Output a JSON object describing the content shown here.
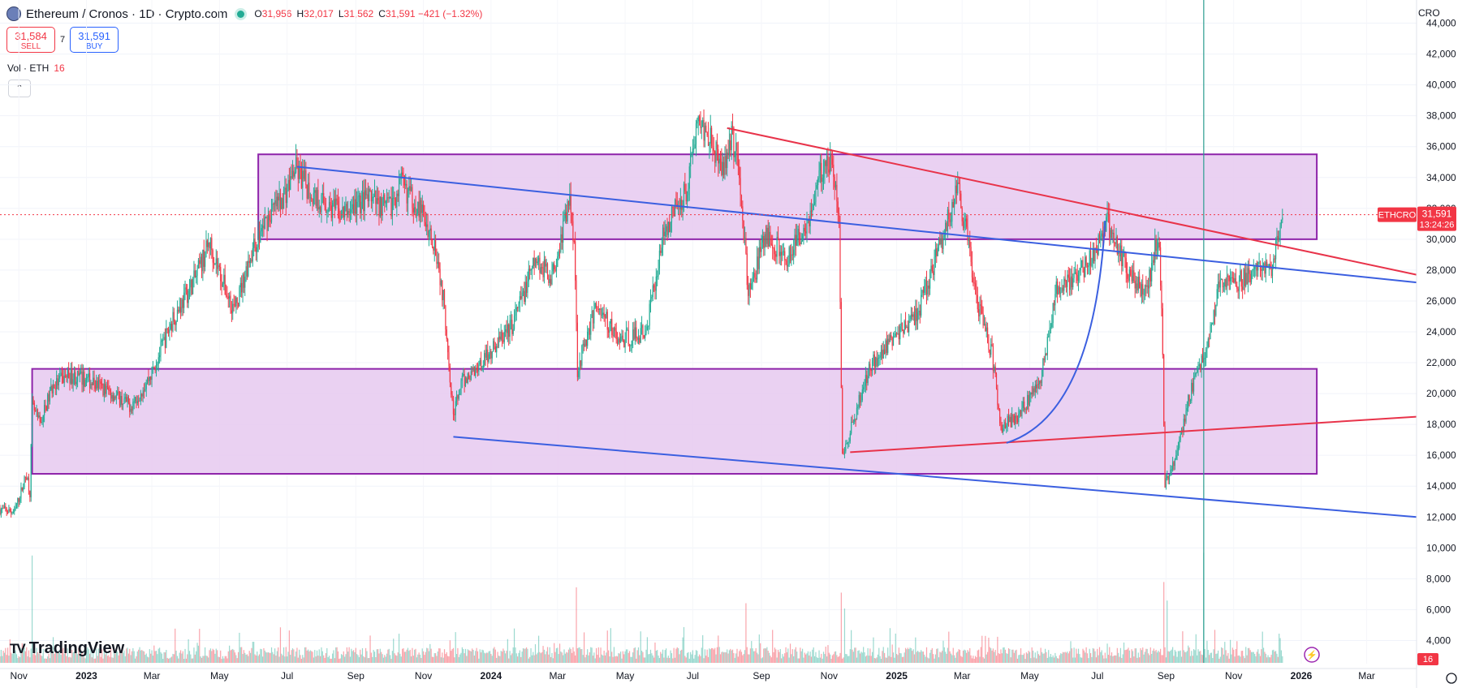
{
  "header": {
    "symbol": "Ethereum / Cronos · 1D · Crypto.com",
    "ohlc": [
      {
        "key": "O",
        "value": "31,956"
      },
      {
        "key": "H",
        "value": "32,017"
      },
      {
        "key": "L",
        "value": "31,562"
      },
      {
        "key": "C",
        "value": "31,591 −421 (−1.32%)"
      }
    ]
  },
  "trade": {
    "sell_price": "31,584",
    "sell_label": "SELL",
    "spread": "7",
    "buy_price": "31,591",
    "buy_label": "BUY"
  },
  "volume_indicator": {
    "label": "Vol · ETH",
    "value": "16"
  },
  "currency": "CRO",
  "brand": "TradingView",
  "colors": {
    "up": "#22ab94",
    "down": "#f23645",
    "zone": "#e6c9f0",
    "zone_border": "#8e24aa",
    "blue_line": "#3b5fe0",
    "red_line": "#e8334a"
  },
  "chart_data": {
    "type": "candlestick",
    "timeframe": "1D",
    "y_ticks": [
      4000,
      6000,
      8000,
      10000,
      12000,
      14000,
      16000,
      18000,
      20000,
      22000,
      24000,
      26000,
      28000,
      30000,
      32000,
      34000,
      36000,
      38000,
      40000,
      42000,
      44000
    ],
    "y_range": [
      2500,
      45500
    ],
    "x_ticks": [
      "Nov",
      "2023",
      "Mar",
      "May",
      "Jul",
      "Sep",
      "Nov",
      "2024",
      "Mar",
      "May",
      "Jul",
      "Sep",
      "Nov",
      "2025",
      "Mar",
      "May",
      "Jul",
      "Sep",
      "Nov",
      "2026",
      "Mar"
    ],
    "x_range": [
      "2022-10-15",
      "2026-04-15"
    ],
    "last_price_label": "ETHCRO",
    "last_price": 31591,
    "last_price_text": "31,591",
    "countdown": "13:24:26",
    "volume_last_label": "16",
    "price_path": [
      [
        "2022-10-15",
        12500
      ],
      [
        "2022-10-28",
        12300
      ],
      [
        "2022-11-08",
        14800
      ],
      [
        "2022-11-11",
        13600
      ],
      [
        "2022-11-13",
        19200
      ],
      [
        "2022-11-20",
        18000
      ],
      [
        "2022-12-01",
        20400
      ],
      [
        "2022-12-15",
        21200
      ],
      [
        "2023-01-01",
        20900
      ],
      [
        "2023-01-20",
        20200
      ],
      [
        "2023-02-10",
        19200
      ],
      [
        "2023-02-28",
        21200
      ],
      [
        "2023-03-20",
        24800
      ],
      [
        "2023-04-10",
        27600
      ],
      [
        "2023-04-22",
        29800
      ],
      [
        "2023-05-08",
        26400
      ],
      [
        "2023-05-15",
        25400
      ],
      [
        "2023-05-28",
        28800
      ],
      [
        "2023-06-12",
        31200
      ],
      [
        "2023-07-01",
        33200
      ],
      [
        "2023-07-08",
        34600
      ],
      [
        "2023-07-25",
        32800
      ],
      [
        "2023-08-20",
        31600
      ],
      [
        "2023-09-10",
        32600
      ],
      [
        "2023-10-01",
        32000
      ],
      [
        "2023-10-12",
        33600
      ],
      [
        "2023-10-30",
        31800
      ],
      [
        "2023-11-12",
        29600
      ],
      [
        "2023-11-20",
        25600
      ],
      [
        "2023-11-28",
        18600
      ],
      [
        "2023-12-05",
        20600
      ],
      [
        "2023-12-25",
        22200
      ],
      [
        "2024-01-20",
        24400
      ],
      [
        "2024-02-10",
        28600
      ],
      [
        "2024-02-25",
        27600
      ],
      [
        "2024-03-12",
        32600
      ],
      [
        "2024-03-16",
        30000
      ],
      [
        "2024-03-19",
        21600
      ],
      [
        "2024-04-05",
        25800
      ],
      [
        "2024-04-25",
        23400
      ],
      [
        "2024-05-20",
        24000
      ],
      [
        "2024-06-05",
        30600
      ],
      [
        "2024-06-25",
        33200
      ],
      [
        "2024-07-05",
        37600
      ],
      [
        "2024-07-18",
        36800
      ],
      [
        "2024-07-26",
        34200
      ],
      [
        "2024-08-05",
        36800
      ],
      [
        "2024-08-12",
        34600
      ],
      [
        "2024-08-20",
        26400
      ],
      [
        "2024-09-05",
        30200
      ],
      [
        "2024-09-25",
        28800
      ],
      [
        "2024-10-15",
        31600
      ],
      [
        "2024-10-28",
        35200
      ],
      [
        "2024-11-05",
        34600
      ],
      [
        "2024-11-10",
        30600
      ],
      [
        "2024-11-13",
        16000
      ],
      [
        "2024-11-22",
        18000
      ],
      [
        "2024-12-08",
        21800
      ],
      [
        "2024-12-28",
        23600
      ],
      [
        "2025-01-20",
        25200
      ],
      [
        "2025-02-10",
        29800
      ],
      [
        "2025-02-25",
        33200
      ],
      [
        "2025-03-05",
        30200
      ],
      [
        "2025-03-15",
        25800
      ],
      [
        "2025-03-28",
        22600
      ],
      [
        "2025-04-05",
        17800
      ],
      [
        "2025-04-20",
        18600
      ],
      [
        "2025-05-10",
        20600
      ],
      [
        "2025-05-25",
        26600
      ],
      [
        "2025-06-15",
        27800
      ],
      [
        "2025-07-01",
        29600
      ],
      [
        "2025-07-10",
        31200
      ],
      [
        "2025-07-20",
        29200
      ],
      [
        "2025-08-05",
        27000
      ],
      [
        "2025-08-15",
        26800
      ],
      [
        "2025-08-25",
        30400
      ],
      [
        "2025-08-28",
        26000
      ],
      [
        "2025-08-31",
        14000
      ],
      [
        "2025-09-08",
        15600
      ],
      [
        "2025-09-25",
        20600
      ],
      [
        "2025-10-10",
        23600
      ],
      [
        "2025-10-20",
        27400
      ],
      [
        "2025-11-05",
        27200
      ],
      [
        "2025-11-25",
        28200
      ],
      [
        "2025-12-05",
        28000
      ],
      [
        "2025-12-15",
        31600
      ]
    ],
    "zones": [
      {
        "x": [
          "2022-11-13",
          "2026-01-15"
        ],
        "y": [
          14800,
          21600
        ]
      },
      {
        "x": [
          "2023-06-05",
          "2026-01-15"
        ],
        "y": [
          30000,
          35500
        ]
      }
    ],
    "trendlines": [
      {
        "color": "blue",
        "from": [
          "2023-07-10",
          34700
        ],
        "to": [
          "2026-04-15",
          27200
        ]
      },
      {
        "color": "blue",
        "from": [
          "2023-11-28",
          17200
        ],
        "to": [
          "2026-04-15",
          12000
        ]
      },
      {
        "color": "red",
        "from": [
          "2024-08-01",
          37200
        ],
        "to": [
          "2026-04-15",
          27700
        ]
      },
      {
        "color": "red",
        "from": [
          "2024-11-20",
          16200
        ],
        "to": [
          "2026-04-15",
          18500
        ]
      }
    ],
    "arc": {
      "color": "blue",
      "from": [
        "2025-04-10",
        16800
      ],
      "control": [
        "2025-06-28",
        18600
      ],
      "to": [
        "2025-07-08",
        31200
      ]
    },
    "vertical_line": {
      "date": "2025-10-05",
      "color": "#2a9d8f"
    },
    "volume_spikes": [
      [
        "2022-11-13",
        10600
      ],
      [
        "2023-03-10",
        3200
      ],
      [
        "2023-05-10",
        3800
      ],
      [
        "2023-11-25",
        4200
      ],
      [
        "2024-03-18",
        8200
      ],
      [
        "2024-08-18",
        7000
      ],
      [
        "2024-11-12",
        7800
      ],
      [
        "2024-11-15",
        6600
      ],
      [
        "2025-03-25",
        4400
      ],
      [
        "2025-08-30",
        8600
      ],
      [
        "2025-09-02",
        7200
      ],
      [
        "2025-10-05",
        10800
      ]
    ]
  }
}
